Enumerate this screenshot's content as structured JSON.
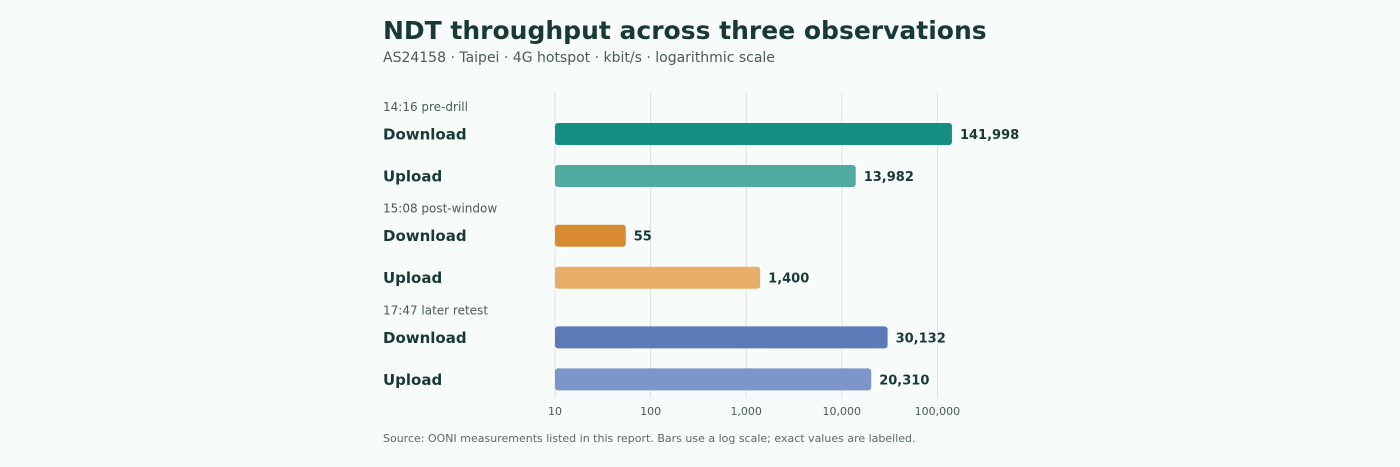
{
  "chart_data": {
    "type": "bar",
    "orientation": "horizontal",
    "title": "NDT throughput across three observations",
    "subtitle": "AS24158 · Taipei · 4G hotspot · kbit/s · logarithmic scale",
    "source": "Source: OONI measurements listed in this report. Bars use a log scale; exact values are labelled.",
    "xscale": "log",
    "xlim": [
      10,
      200000
    ],
    "ticks": [
      {
        "value": 10,
        "label": "10"
      },
      {
        "value": 100,
        "label": "100"
      },
      {
        "value": 1000,
        "label": "1,000"
      },
      {
        "value": 10000,
        "label": "10,000"
      },
      {
        "value": 100000,
        "label": "100,000"
      }
    ],
    "grid": true,
    "groups": [
      {
        "label": "14:16 pre-drill",
        "bars": [
          {
            "name": "Download",
            "value": 141998,
            "value_label": "141,998",
            "color": "#168f83"
          },
          {
            "name": "Upload",
            "value": 13982,
            "value_label": "13,982",
            "color": "#4faaa0"
          }
        ]
      },
      {
        "label": "15:08 post-window",
        "bars": [
          {
            "name": "Download",
            "value": 55,
            "value_label": "55",
            "color": "#d98b32"
          },
          {
            "name": "Upload",
            "value": 1400,
            "value_label": "1,400",
            "color": "#e6ae66"
          }
        ]
      },
      {
        "label": "17:47 later retest",
        "bars": [
          {
            "name": "Download",
            "value": 30132,
            "value_label": "30,132",
            "color": "#5c7ab8"
          },
          {
            "name": "Upload",
            "value": 20310,
            "value_label": "20,310",
            "color": "#7d95c8"
          }
        ]
      }
    ]
  }
}
